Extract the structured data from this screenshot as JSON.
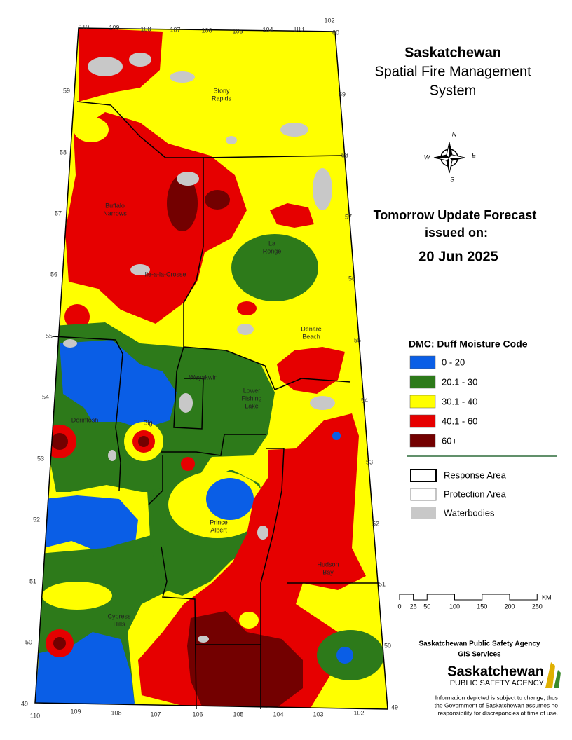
{
  "header": {
    "title_lines": [
      "Saskatchewan",
      "Spatial Fire Management",
      "System"
    ]
  },
  "forecast": {
    "heading": "Tomorrow Update Forecast",
    "issued": "issued on:",
    "date": "20 Jun 2025"
  },
  "legend": {
    "title": "DMC: Duff Moisture Code",
    "items": [
      {
        "label": "0 - 20",
        "color": "#0a5ee6"
      },
      {
        "label": "20.1 - 30",
        "color": "#2d7a1a"
      },
      {
        "label": "30.1 - 40",
        "color": "#ffff00"
      },
      {
        "label": "40.1 - 60",
        "color": "#e60000"
      },
      {
        "label": "60+",
        "color": "#730000"
      }
    ],
    "boundaries": [
      "Response Area",
      "Protection Area",
      "Waterbodies"
    ]
  },
  "scale": {
    "unit": "KM",
    "ticks": [
      0,
      25,
      50,
      100,
      150,
      200,
      250
    ]
  },
  "map": {
    "compass": [
      "N",
      "E",
      "S",
      "W"
    ],
    "lat_labels": [
      59,
      58,
      57,
      56,
      55,
      54,
      53,
      52,
      51,
      50,
      49,
      60
    ],
    "lon_labels": [
      110,
      109,
      108,
      107,
      106,
      105,
      104,
      103,
      102
    ],
    "places": [
      [
        "Stony",
        "Rapids"
      ],
      [
        "Buffalo",
        "Narrows"
      ],
      [
        "Ile-a-la-Crosse"
      ],
      [
        "La",
        "Ronge"
      ],
      [
        "Denare",
        "Beach"
      ],
      [
        "Weyakwin"
      ],
      [
        "Lower",
        "Fishing",
        "Lake"
      ],
      [
        "Dorintosh"
      ],
      [
        "Big"
      ],
      [
        "Prince",
        "Albert"
      ],
      [
        "Hudson",
        "Bay"
      ],
      [
        "Cypress",
        "Hills"
      ]
    ]
  },
  "footer": {
    "agency": "Saskatchewan Public Safety Agency",
    "service": "GIS  Services",
    "logo_name": "Saskatchewan",
    "logo_sub": "PUBLIC SAFETY AGENCY",
    "disclaimer": [
      "Information depicted is subject to change, thus",
      "the Government of Saskatchewan assumes no",
      "responsibility for discrepancies at time of use."
    ]
  }
}
